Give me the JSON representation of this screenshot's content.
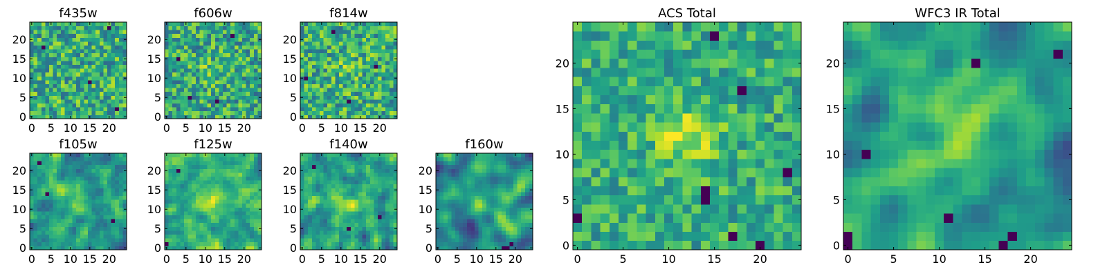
{
  "chart_data": [
    {
      "type": "heatmap",
      "title": "f435w",
      "grid_size": 25,
      "xticks": [
        0,
        5,
        10,
        15,
        20
      ],
      "yticks": [
        0,
        5,
        10,
        15,
        20
      ],
      "xlim": [
        -0.5,
        24.5
      ],
      "ylim": [
        -0.5,
        24.5
      ],
      "colormap": "viridis",
      "value_range": [
        0,
        1
      ],
      "seed": 11,
      "smoothness": 0,
      "mean": 0.62,
      "contrast": 0.55,
      "center_boost": 0.0,
      "dark_spots": [
        [
          20,
          23
        ],
        [
          3,
          18
        ],
        [
          15,
          9
        ],
        [
          22,
          2
        ]
      ]
    },
    {
      "type": "heatmap",
      "title": "f606w",
      "grid_size": 25,
      "xticks": [
        0,
        5,
        10,
        15,
        20
      ],
      "yticks": [
        0,
        5,
        10,
        15,
        20
      ],
      "xlim": [
        -0.5,
        24.5
      ],
      "ylim": [
        -0.5,
        24.5
      ],
      "colormap": "viridis",
      "value_range": [
        0,
        1
      ],
      "seed": 23,
      "smoothness": 0,
      "mean": 0.6,
      "contrast": 0.55,
      "center_boost": 0.12,
      "dark_spots": [
        [
          17,
          21
        ],
        [
          3,
          15
        ],
        [
          13,
          4
        ],
        [
          6,
          5
        ]
      ]
    },
    {
      "type": "heatmap",
      "title": "f814w",
      "grid_size": 25,
      "xticks": [
        0,
        5,
        10,
        15,
        20
      ],
      "yticks": [
        0,
        5,
        10,
        15,
        20
      ],
      "xlim": [
        -0.5,
        24.5
      ],
      "ylim": [
        -0.5,
        24.5
      ],
      "colormap": "viridis",
      "value_range": [
        0,
        1
      ],
      "seed": 37,
      "smoothness": 0,
      "mean": 0.62,
      "contrast": 0.55,
      "center_boost": 0.1,
      "dark_spots": [
        [
          8,
          22
        ],
        [
          1,
          10
        ],
        [
          19,
          13
        ],
        [
          12,
          4
        ]
      ]
    },
    {
      "type": "heatmap",
      "title": "f105w",
      "grid_size": 25,
      "xticks": [
        0,
        5,
        10,
        15,
        20
      ],
      "yticks": [
        0,
        5,
        10,
        15,
        20
      ],
      "xlim": [
        -0.5,
        24.5
      ],
      "ylim": [
        -0.5,
        24.5
      ],
      "colormap": "viridis",
      "value_range": [
        0,
        1
      ],
      "seed": 41,
      "smoothness": 1,
      "mean": 0.55,
      "contrast": 0.65,
      "center_boost": 0.25,
      "dark_spots": [
        [
          2,
          22
        ],
        [
          21,
          7
        ],
        [
          4,
          14
        ]
      ]
    },
    {
      "type": "heatmap",
      "title": "f125w",
      "grid_size": 25,
      "xticks": [
        0,
        5,
        10,
        15,
        20
      ],
      "yticks": [
        0,
        5,
        10,
        15,
        20
      ],
      "xlim": [
        -0.5,
        24.5
      ],
      "ylim": [
        -0.5,
        24.5
      ],
      "colormap": "viridis",
      "value_range": [
        0,
        1
      ],
      "seed": 53,
      "smoothness": 1,
      "mean": 0.62,
      "contrast": 0.6,
      "center_boost": 0.18,
      "dark_spots": [
        [
          0,
          1
        ],
        [
          3,
          20
        ]
      ]
    },
    {
      "type": "heatmap",
      "title": "f140w",
      "grid_size": 25,
      "xticks": [
        0,
        5,
        10,
        15,
        20
      ],
      "yticks": [
        0,
        5,
        10,
        15,
        20
      ],
      "xlim": [
        -0.5,
        24.5
      ],
      "ylim": [
        -0.5,
        24.5
      ],
      "colormap": "viridis",
      "value_range": [
        0,
        1
      ],
      "seed": 67,
      "smoothness": 1,
      "mean": 0.55,
      "contrast": 0.65,
      "center_boost": 0.15,
      "dark_spots": [
        [
          3,
          21
        ],
        [
          12,
          5
        ],
        [
          20,
          8
        ]
      ]
    },
    {
      "type": "heatmap",
      "title": "f160w",
      "grid_size": 25,
      "xticks": [
        0,
        5,
        10,
        15,
        20
      ],
      "yticks": [
        0,
        5,
        10,
        15,
        20
      ],
      "xlim": [
        -0.5,
        24.5
      ],
      "ylim": [
        -0.5,
        24.5
      ],
      "colormap": "viridis",
      "value_range": [
        0,
        1
      ],
      "seed": 79,
      "smoothness": 2,
      "mean": 0.5,
      "contrast": 0.7,
      "center_boost": 0.25,
      "dark_spots": [
        [
          17,
          0
        ],
        [
          18,
          0
        ],
        [
          19,
          1
        ]
      ]
    },
    {
      "type": "heatmap",
      "title": "ACS Total",
      "grid_size": 25,
      "xticks": [
        0,
        5,
        10,
        15,
        20
      ],
      "yticks": [
        0,
        5,
        10,
        15,
        20
      ],
      "xlim": [
        -0.5,
        24.5
      ],
      "ylim": [
        -0.5,
        24.5
      ],
      "colormap": "viridis",
      "value_range": [
        0,
        1
      ],
      "seed": 97,
      "smoothness": 0,
      "mean": 0.62,
      "contrast": 0.4,
      "center_boost": 0.28,
      "dark_spots": [
        [
          15,
          23
        ],
        [
          18,
          17
        ],
        [
          14,
          6
        ],
        [
          14,
          5
        ],
        [
          0,
          3
        ],
        [
          17,
          1
        ],
        [
          20,
          0
        ],
        [
          23,
          8
        ]
      ]
    },
    {
      "type": "heatmap",
      "title": "WFC3 IR Total",
      "grid_size": 25,
      "xticks": [
        0,
        5,
        10,
        15,
        20
      ],
      "yticks": [
        0,
        5,
        10,
        15,
        20
      ],
      "xlim": [
        -0.5,
        24.5
      ],
      "ylim": [
        -0.5,
        24.5
      ],
      "colormap": "viridis",
      "value_range": [
        0,
        1
      ],
      "seed": 113,
      "smoothness": 2,
      "mean": 0.52,
      "contrast": 0.55,
      "center_boost": 0.35,
      "dark_spots": [
        [
          23,
          21
        ],
        [
          14,
          20
        ],
        [
          2,
          10
        ],
        [
          0,
          1
        ],
        [
          0,
          0
        ],
        [
          11,
          3
        ],
        [
          18,
          1
        ],
        [
          17,
          0
        ]
      ]
    }
  ]
}
